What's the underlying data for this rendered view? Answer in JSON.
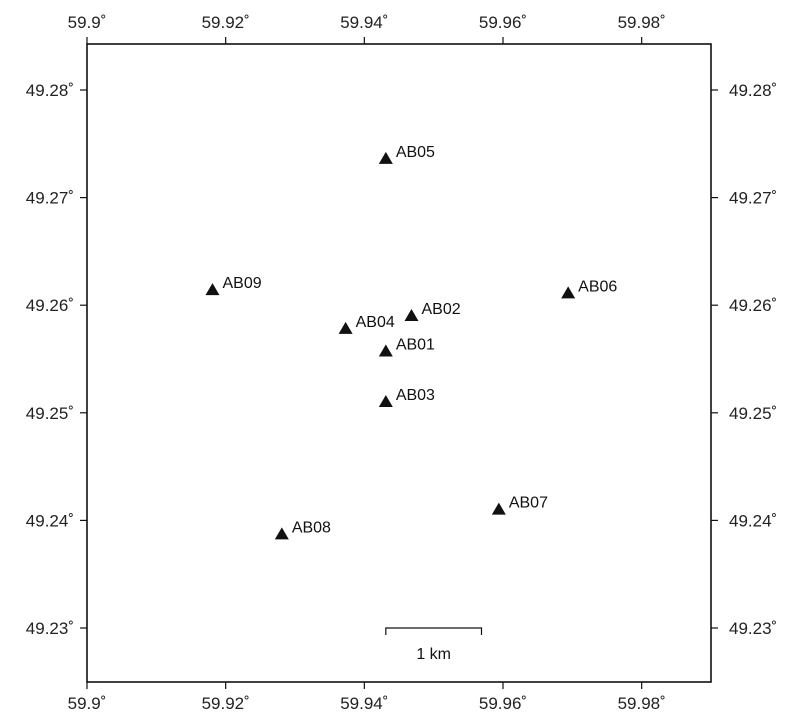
{
  "map": {
    "x_axis": {
      "ticks": [
        59.9,
        59.92,
        59.94,
        59.96,
        59.98
      ],
      "labels": [
        "59.9˚",
        "59.92˚",
        "59.94˚",
        "59.96˚",
        "59.98˚"
      ]
    },
    "y_axis": {
      "ticks": [
        49.23,
        49.24,
        49.25,
        49.26,
        49.27,
        49.28
      ],
      "labels": [
        "49.23˚",
        "49.24˚",
        "49.25˚",
        "49.26˚",
        "49.27˚",
        "49.28˚"
      ]
    },
    "stations": [
      {
        "name": "AB01",
        "lon": 59.9431,
        "lat": 49.2557
      },
      {
        "name": "AB02",
        "lon": 59.9468,
        "lat": 49.259
      },
      {
        "name": "AB03",
        "lon": 59.9431,
        "lat": 49.251
      },
      {
        "name": "AB04",
        "lon": 59.9373,
        "lat": 49.2578
      },
      {
        "name": "AB05",
        "lon": 59.9431,
        "lat": 49.2736
      },
      {
        "name": "AB06",
        "lon": 59.9694,
        "lat": 49.2611
      },
      {
        "name": "AB07",
        "lon": 59.9594,
        "lat": 49.241
      },
      {
        "name": "AB08",
        "lon": 59.9281,
        "lat": 49.2387
      },
      {
        "name": "AB09",
        "lon": 59.9181,
        "lat": 49.2614
      }
    ],
    "scale_bar": {
      "label": "1 km",
      "lon_start": 59.9431,
      "lon_end": 59.9569,
      "lat": 49.23
    },
    "colors": {
      "marker": "#111111",
      "frame": "#111111"
    }
  }
}
